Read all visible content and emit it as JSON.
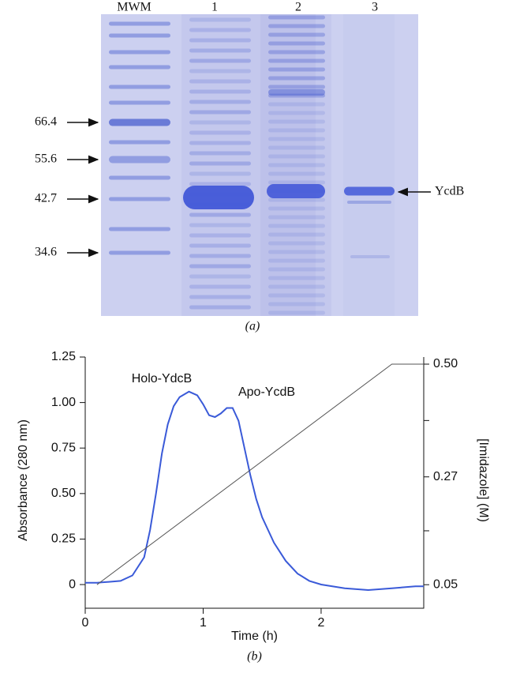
{
  "gel": {
    "lane_labels": [
      "MWM",
      "1",
      "2",
      "3"
    ],
    "markers": [
      "66.4",
      "55.6",
      "42.7",
      "34.6"
    ],
    "band_label": "YcdB",
    "caption": "(a)"
  },
  "chart_data": {
    "type": "line",
    "caption": "(b)",
    "xlabel": "Time (h)",
    "ylabel": "Absorbance (280 nm)",
    "y2label": "[Imidazole] (M)",
    "annotations": [
      "Holo-YdcB",
      "Apo-YcdB"
    ],
    "xlim": [
      0,
      2.87
    ],
    "xticks": [
      0,
      1,
      2
    ],
    "ylim": [
      -0.13,
      1.25
    ],
    "yticks": [
      0,
      0.25,
      {
        "value": 0.5,
        "label": "0.50"
      },
      0.75,
      {
        "value": 1,
        "label": "1.00"
      },
      1.25
    ],
    "y2lim": [
      0.002,
      0.5145
    ],
    "y2ticks": [
      {
        "value": 0.05,
        "label": "0.05"
      },
      0.27,
      {
        "value": 0.5,
        "label": "0.50"
      }
    ],
    "series": [
      {
        "color": "#3a5ad8",
        "x": [
          0,
          0.1,
          0.2,
          0.3,
          0.4,
          0.5,
          0.55,
          0.6,
          0.65,
          0.7,
          0.75,
          0.8,
          0.88,
          0.95,
          1.0,
          1.05,
          1.1,
          1.15,
          1.2,
          1.25,
          1.3,
          1.35,
          1.4,
          1.45,
          1.5,
          1.6,
          1.7,
          1.8,
          1.9,
          2.0,
          2.2,
          2.4,
          2.6,
          2.8,
          2.87
        ],
        "values": [
          0.01,
          0.01,
          0.015,
          0.02,
          0.05,
          0.15,
          0.3,
          0.5,
          0.72,
          0.88,
          0.98,
          1.03,
          1.06,
          1.04,
          0.99,
          0.93,
          0.92,
          0.94,
          0.97,
          0.97,
          0.9,
          0.75,
          0.6,
          0.47,
          0.37,
          0.23,
          0.13,
          0.06,
          0.02,
          0.0,
          -0.02,
          -0.03,
          -0.02,
          -0.01,
          -0.01
        ]
      },
      {
        "color": "#555555",
        "axis": "y2",
        "x": [
          0.1,
          2.6,
          2.87
        ],
        "values": [
          0.05,
          0.5,
          0.5
        ]
      }
    ]
  }
}
